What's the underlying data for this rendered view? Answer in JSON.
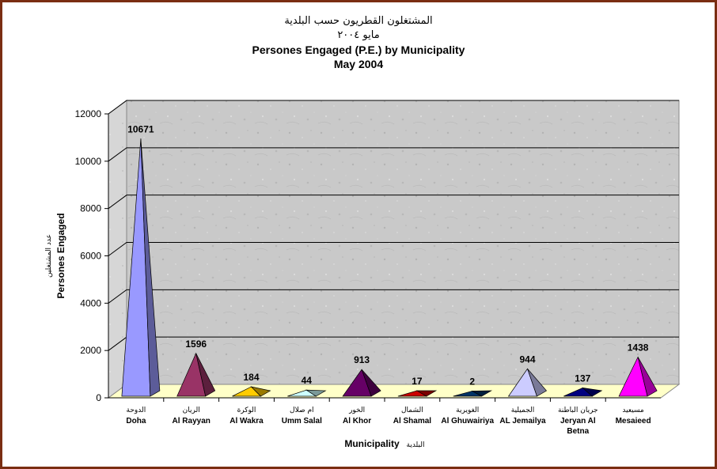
{
  "chart_data": {
    "type": "bar",
    "title_ar": "المشتغلون القطريون حسب البلدية",
    "subtitle_ar": "مايو ٢٠٠٤",
    "title": "Persones Engaged (P.E.) by Municipality",
    "subtitle": "May 2004",
    "ylabel": "Persones Engaged",
    "ylabel_ar": "عدد المشتغلين",
    "xlabel": "Municipality",
    "xlabel_ar": "البلدية",
    "ylim": [
      0,
      12000
    ],
    "yticks": [
      0,
      2000,
      4000,
      6000,
      8000,
      10000,
      12000
    ],
    "grid": true,
    "categories": [
      {
        "ar": "الدوحة",
        "en": [
          "Doha"
        ]
      },
      {
        "ar": "الريان",
        "en": [
          "Al Rayyan"
        ]
      },
      {
        "ar": "الوكرة",
        "en": [
          "Al Wakra"
        ]
      },
      {
        "ar": "ام صلال",
        "en": [
          "Umm Salal"
        ]
      },
      {
        "ar": "الخور",
        "en": [
          "Al Khor"
        ]
      },
      {
        "ar": "الشمال",
        "en": [
          "Al Shamal"
        ]
      },
      {
        "ar": "الغويرية",
        "en": [
          "Al Ghuwairiya"
        ]
      },
      {
        "ar": "الجميلية",
        "en": [
          "AL Jemailya"
        ]
      },
      {
        "ar": "جريان الباطنة",
        "en": [
          "Jeryan Al",
          "Betna"
        ]
      },
      {
        "ar": "مسيعيد",
        "en": [
          "Mesaieed"
        ]
      }
    ],
    "values": [
      10671,
      1596,
      184,
      44,
      913,
      17,
      2,
      944,
      137,
      1438
    ],
    "colors": [
      "#9999ff",
      "#993366",
      "#ffcc00",
      "#ccffff",
      "#660066",
      "#cc0000",
      "#003366",
      "#ccccff",
      "#000080",
      "#ff00ff"
    ]
  }
}
